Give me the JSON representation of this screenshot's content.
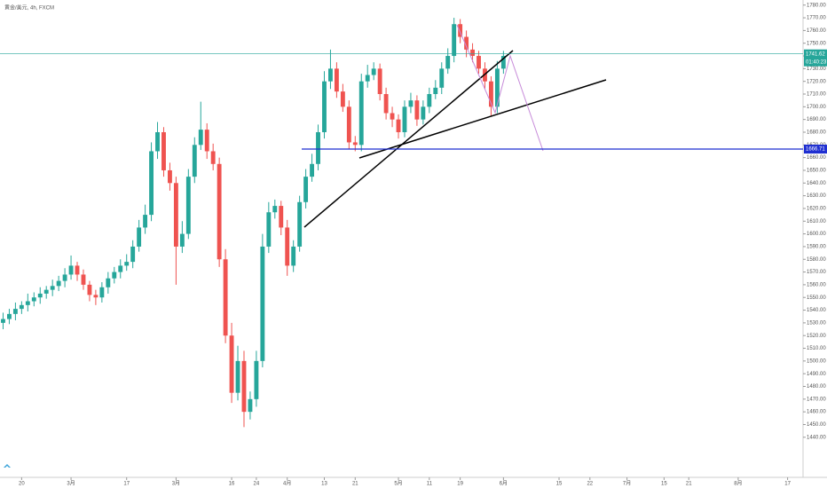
{
  "chart_data": {
    "type": "candlestick",
    "title": "黄金/美元, 4h, FXCM",
    "up_color": "#26a69a",
    "down_color": "#ef5350",
    "open": [
      1530,
      1533,
      1537,
      1541,
      1544,
      1547,
      1550,
      1553,
      1556,
      1559,
      1563,
      1568,
      1575,
      1568,
      1560,
      1552,
      1550,
      1558,
      1565,
      1570,
      1575,
      1578,
      1590,
      1605,
      1615,
      1665,
      1680,
      1650,
      1640,
      1590,
      1600,
      1645,
      1670,
      1682,
      1665,
      1655,
      1580,
      1520,
      1475,
      1500,
      1460,
      1470,
      1500,
      1590,
      1617,
      1622,
      1605,
      1575,
      1590,
      1625,
      1645,
      1655,
      1680,
      1720,
      1730,
      1712,
      1700,
      1672,
      1670,
      1720,
      1725,
      1730,
      1710,
      1695,
      1690,
      1680,
      1700,
      1705,
      1690,
      1700,
      1710,
      1715,
      1730,
      1740,
      1765,
      1755,
      1745,
      1740,
      1730,
      1720,
      1700,
      1730
    ],
    "high": [
      1538,
      1541,
      1546,
      1547,
      1553,
      1554,
      1558,
      1559,
      1564,
      1567,
      1573,
      1583,
      1578,
      1572,
      1563,
      1556,
      1562,
      1570,
      1574,
      1580,
      1584,
      1595,
      1611,
      1623,
      1672,
      1688,
      1684,
      1656,
      1645,
      1610,
      1651,
      1676,
      1704,
      1687,
      1671,
      1660,
      1588,
      1530,
      1512,
      1508,
      1476,
      1508,
      1600,
      1625,
      1627,
      1626,
      1611,
      1595,
      1630,
      1651,
      1663,
      1686,
      1728,
      1745,
      1735,
      1718,
      1705,
      1677,
      1726,
      1733,
      1735,
      1734,
      1715,
      1700,
      1694,
      1705,
      1711,
      1709,
      1705,
      1715,
      1721,
      1735,
      1746,
      1770,
      1769,
      1760,
      1750,
      1744,
      1735,
      1724,
      1736,
      1744
    ],
    "low": [
      1525,
      1529,
      1532,
      1537,
      1539,
      1543,
      1545,
      1549,
      1551,
      1555,
      1558,
      1564,
      1563,
      1556,
      1547,
      1544,
      1546,
      1553,
      1561,
      1565,
      1571,
      1573,
      1586,
      1600,
      1610,
      1659,
      1645,
      1634,
      1560,
      1585,
      1596,
      1640,
      1666,
      1659,
      1650,
      1574,
      1514,
      1467,
      1469,
      1448,
      1454,
      1464,
      1495,
      1585,
      1612,
      1599,
      1567,
      1570,
      1586,
      1620,
      1641,
      1650,
      1675,
      1714,
      1707,
      1696,
      1667,
      1665,
      1665,
      1715,
      1721,
      1705,
      1690,
      1684,
      1675,
      1676,
      1695,
      1685,
      1686,
      1695,
      1706,
      1710,
      1726,
      1735,
      1750,
      1739,
      1735,
      1726,
      1714,
      1693,
      1695,
      1726
    ],
    "close": [
      1533,
      1537,
      1541,
      1544,
      1547,
      1550,
      1553,
      1556,
      1559,
      1563,
      1568,
      1575,
      1568,
      1560,
      1552,
      1550,
      1558,
      1565,
      1570,
      1575,
      1578,
      1590,
      1605,
      1615,
      1665,
      1680,
      1650,
      1640,
      1590,
      1600,
      1645,
      1670,
      1682,
      1665,
      1655,
      1580,
      1520,
      1475,
      1500,
      1460,
      1470,
      1500,
      1590,
      1617,
      1622,
      1605,
      1575,
      1590,
      1625,
      1645,
      1655,
      1680,
      1720,
      1730,
      1712,
      1700,
      1672,
      1670,
      1720,
      1725,
      1730,
      1710,
      1695,
      1690,
      1680,
      1700,
      1705,
      1690,
      1700,
      1710,
      1715,
      1730,
      1740,
      1765,
      1755,
      1745,
      1740,
      1730,
      1720,
      1700,
      1730,
      1740
    ],
    "xlim": [
      -0.5,
      129.5
    ],
    "xticks": [
      {
        "value": 3,
        "label": "20"
      },
      {
        "value": 11,
        "label": "3月"
      },
      {
        "value": 20,
        "label": "17"
      },
      {
        "value": 28,
        "label": "3月"
      },
      {
        "value": 37,
        "label": "16"
      },
      {
        "value": 41,
        "label": "24"
      },
      {
        "value": 46,
        "label": "4月"
      },
      {
        "value": 52,
        "label": "13"
      },
      {
        "value": 57,
        "label": "21"
      },
      {
        "value": 64,
        "label": "5月"
      },
      {
        "value": 69,
        "label": "11"
      },
      {
        "value": 74,
        "label": "19"
      },
      {
        "value": 81,
        "label": "6月"
      },
      {
        "value": 90,
        "label": "15"
      },
      {
        "value": 95,
        "label": "22"
      },
      {
        "value": 101,
        "label": "7月"
      },
      {
        "value": 107,
        "label": "15"
      },
      {
        "value": 111,
        "label": "21"
      },
      {
        "value": 119,
        "label": "8月"
      },
      {
        "value": 127,
        "label": "17"
      }
    ],
    "ylim": [
      1428,
      1784
    ],
    "yticks": [
      {
        "value": 1440,
        "label": "1440.00"
      },
      {
        "value": 1450,
        "label": "1450.00"
      },
      {
        "value": 1460,
        "label": "1460.00"
      },
      {
        "value": 1470,
        "label": "1470.00"
      },
      {
        "value": 1480,
        "label": "1480.00"
      },
      {
        "value": 1490,
        "label": "1490.00"
      },
      {
        "value": 1500,
        "label": "1500.00"
      },
      {
        "value": 1510,
        "label": "1510.00"
      },
      {
        "value": 1520,
        "label": "1520.00"
      },
      {
        "value": 1530,
        "label": "1530.00"
      },
      {
        "value": 1540,
        "label": "1540.00"
      },
      {
        "value": 1550,
        "label": "1550.00"
      },
      {
        "value": 1560,
        "label": "1560.00"
      },
      {
        "value": 1570,
        "label": "1570.00"
      },
      {
        "value": 1580,
        "label": "1580.00"
      },
      {
        "value": 1590,
        "label": "1590.00"
      },
      {
        "value": 1600,
        "label": "1600.00"
      },
      {
        "value": 1610,
        "label": "1610.00"
      },
      {
        "value": 1620,
        "label": "1620.00"
      },
      {
        "value": 1630,
        "label": "1630.00"
      },
      {
        "value": 1640,
        "label": "1640.00"
      },
      {
        "value": 1650,
        "label": "1650.00"
      },
      {
        "value": 1660,
        "label": "1660.00"
      },
      {
        "value": 1670,
        "label": "1670.00"
      },
      {
        "value": 1680,
        "label": "1680.00"
      },
      {
        "value": 1690,
        "label": "1690.00"
      },
      {
        "value": 1700,
        "label": "1700.00"
      },
      {
        "value": 1710,
        "label": "1710.00"
      },
      {
        "value": 1720,
        "label": "1720.00"
      },
      {
        "value": 1730,
        "label": "1730.00"
      },
      {
        "value": 1740,
        "label": "1740.00"
      },
      {
        "value": 1750,
        "label": "1750.00"
      },
      {
        "value": 1760,
        "label": "1760.00"
      },
      {
        "value": 1770,
        "label": "1770.00"
      },
      {
        "value": 1780,
        "label": "1780.00"
      }
    ],
    "hline": {
      "value": 1666.71,
      "color": "#1f2fd1"
    },
    "last_price": {
      "value": 1741.62,
      "color": "#26a69a",
      "countdown": "01:40:23"
    }
  }
}
